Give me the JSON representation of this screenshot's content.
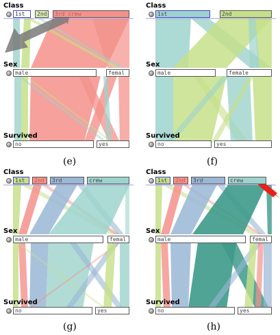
{
  "colors": {
    "first": "#c6e08a",
    "second": "#f4918b",
    "third": "#9ab7d6",
    "crew": "#9ed3cc",
    "crew_dark": "#3d9a8a",
    "highlight": "#3f3fd6"
  },
  "panels": [
    {
      "caption": "(e)",
      "class_label": "Class",
      "sex_label": "Sex",
      "survived_label": "Survived",
      "class_segments": [
        "1st",
        "2nd",
        "3rd crew"
      ],
      "sex_segments": [
        "male",
        "femal"
      ],
      "survived_segments": [
        "no",
        "yes"
      ],
      "annotation_arrow": "gray-arrow"
    },
    {
      "caption": "(f)",
      "class_label": "Class",
      "sex_label": "Sex",
      "survived_label": "Survived",
      "class_segments": [
        "1st",
        "2nd"
      ],
      "sex_segments": [
        "male",
        "female"
      ],
      "survived_segments": [
        "no",
        "yes"
      ]
    },
    {
      "caption": "(g)",
      "class_label": "Class",
      "sex_label": "Sex",
      "survived_label": "Survived",
      "class_segments": [
        "1st",
        "2nd",
        "3rd",
        "crew"
      ],
      "sex_segments": [
        "male",
        "femal"
      ],
      "survived_segments": [
        "no",
        "yes"
      ]
    },
    {
      "caption": "(h)",
      "class_label": "Class",
      "sex_label": "Sex",
      "survived_label": "Survived",
      "class_segments": [
        "1st",
        "2nd",
        "3rd",
        "crew"
      ],
      "sex_segments": [
        "male",
        "femal"
      ],
      "survived_segments": [
        "no",
        "yes"
      ],
      "annotation_arrow": "red-arrow"
    }
  ]
}
